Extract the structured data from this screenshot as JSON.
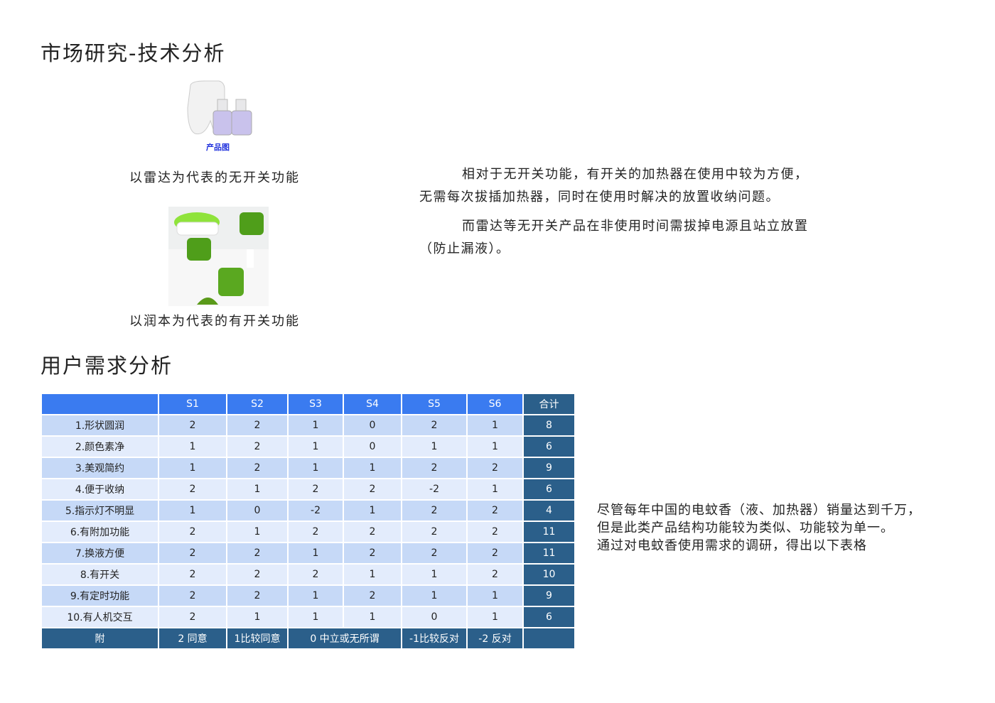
{
  "section1": {
    "title": "市场研究-技术分析",
    "product_image_label": "产品图",
    "caption1": "以雷达为代表的无开关功能",
    "caption2": "以润本为代表的有开关功能",
    "paragraph1_line1": "相对于无开关功能，有开关的加热器在使用中较为方便，",
    "paragraph1_line2": "无需每次拔插加热器，同时在使用时解决的放置收纳问题。",
    "paragraph2_line1": "而雷达等无开关产品在非使用时间需拔掉电源且站立放置",
    "paragraph2_line2": "（防止漏液）。"
  },
  "section2": {
    "title": "用户需求分析",
    "description_lines": [
      "尽管每年中国的电蚊香（液、加热器）销量达到千万，",
      "但是此类产品结构功能较为类似、功能较为单一。",
      "通过对电蚊香使用需求的调研，得出以下表格"
    ]
  },
  "table": {
    "headers": [
      "",
      "S1",
      "S2",
      "S3",
      "S4",
      "S5",
      "S6",
      "合计"
    ],
    "rows": [
      [
        "1.形状圆润",
        "2",
        "2",
        "1",
        "0",
        "2",
        "1",
        "8"
      ],
      [
        "2.颜色素净",
        "1",
        "2",
        "1",
        "0",
        "1",
        "1",
        "6"
      ],
      [
        "3.美观简约",
        "1",
        "2",
        "1",
        "1",
        "2",
        "2",
        "9"
      ],
      [
        "4.便于收纳",
        "2",
        "1",
        "2",
        "2",
        "-2",
        "1",
        "6"
      ],
      [
        "5.指示灯不明显",
        "1",
        "0",
        "-2",
        "1",
        "2",
        "2",
        "4"
      ],
      [
        "6.有附加功能",
        "2",
        "1",
        "2",
        "2",
        "2",
        "2",
        "11"
      ],
      [
        "7.换液方便",
        "2",
        "2",
        "1",
        "2",
        "2",
        "2",
        "11"
      ],
      [
        "8.有开关",
        "2",
        "2",
        "2",
        "1",
        "1",
        "2",
        "10"
      ],
      [
        "9.有定时功能",
        "2",
        "2",
        "1",
        "2",
        "1",
        "1",
        "9"
      ],
      [
        "10.有人机交互",
        "2",
        "1",
        "1",
        "1",
        "0",
        "1",
        "6"
      ]
    ],
    "footer": [
      "附",
      "2 同意",
      "1比较同意",
      "0 中立或无所谓",
      "-1比较反对",
      "-2 反对",
      ""
    ]
  }
}
